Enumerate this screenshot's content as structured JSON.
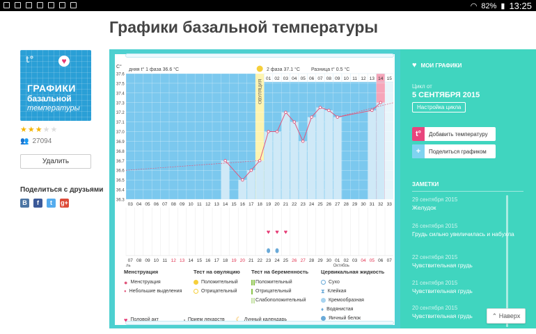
{
  "status_bar": {
    "battery": "82%",
    "time": "13:25"
  },
  "page": {
    "title": "Графики базальной температуры"
  },
  "app": {
    "icon": {
      "t0": "t°",
      "line1": "ГРАФИКИ",
      "line2": "базальной",
      "line3": "температуры"
    },
    "rating_stars": 3,
    "rating_max": 5,
    "downloads": "27094",
    "delete_label": "Удалить"
  },
  "share": {
    "title": "Поделиться с друзьями",
    "networks": [
      {
        "icon": "vk-icon",
        "glyph": "В",
        "color": "#4c75a3"
      },
      {
        "icon": "facebook-icon",
        "glyph": "f",
        "color": "#3b5998"
      },
      {
        "icon": "twitter-icon",
        "glyph": "t",
        "color": "#55acee"
      },
      {
        "icon": "google-plus-icon",
        "glyph": "g+",
        "color": "#dd4b39"
      }
    ]
  },
  "chart_data": {
    "type": "line",
    "header": {
      "phase1": "дняя t° 1 фаза",
      "phase1_value": "36.6 °C",
      "phase2": "2 фаза",
      "phase2_value": "37.1 °C",
      "diff": "Разница t°",
      "diff_value": "0.5 °C"
    },
    "ylabel": "C°",
    "ylim": [
      36.3,
      37.6
    ],
    "yticks": [
      "37.6",
      "37.5",
      "37.4",
      "37.3",
      "37.2",
      "37.1",
      "37.0",
      "36.9",
      "36.8",
      "36.7",
      "36.6",
      "36.5",
      "36.4",
      "36.3"
    ],
    "cycle_days": [
      "03",
      "04",
      "05",
      "06",
      "07",
      "08",
      "09",
      "10",
      "11",
      "12",
      "13",
      "14",
      "15",
      "16",
      "17",
      "18",
      "19",
      "20",
      "21",
      "22",
      "23",
      "24",
      "25",
      "26",
      "27",
      "28",
      "29",
      "30",
      "31",
      "32",
      "33"
    ],
    "visible_top_days": [
      "01",
      "02",
      "03",
      "04",
      "05",
      "06",
      "07",
      "08",
      "09",
      "10",
      "11",
      "12",
      "13",
      "14",
      "15"
    ],
    "calendar_dates": [
      "07",
      "08",
      "09",
      "10",
      "11",
      "12",
      "13",
      "14",
      "15",
      "16",
      "17",
      "18",
      "19",
      "20",
      "21",
      "22",
      "23",
      "24",
      "25",
      "26",
      "27",
      "28",
      "29",
      "30",
      "01",
      "02",
      "03",
      "04",
      "05",
      "06",
      "07"
    ],
    "red_dates": [
      "12",
      "13",
      "19",
      "20",
      "26",
      "27",
      "03",
      "04"
    ],
    "month_labels": {
      "start": "ль",
      "mid": "Октябрь"
    },
    "ovulation_label": "ОВУЛЯЦИЯ",
    "ovulation_day": "18",
    "temperature_points": [
      {
        "day": "14",
        "temp": 36.7
      },
      {
        "day": "16",
        "temp": 36.5
      },
      {
        "day": "17",
        "temp": 36.6
      },
      {
        "day": "18",
        "temp": 36.7
      },
      {
        "day": "19",
        "temp": 37.0
      },
      {
        "day": "20",
        "temp": 37.0
      },
      {
        "day": "21",
        "temp": 37.2
      },
      {
        "day": "22",
        "temp": 37.1
      },
      {
        "day": "23",
        "temp": 36.9
      },
      {
        "day": "24",
        "temp": 37.15
      },
      {
        "day": "25",
        "temp": 37.25
      },
      {
        "day": "26",
        "temp": 37.22
      },
      {
        "day": "27",
        "temp": 37.15
      },
      {
        "day": "31",
        "temp": 37.22
      },
      {
        "day": "32",
        "temp": 37.3
      }
    ],
    "cover_line_start": 36.6,
    "cover_line_end": 36.7,
    "heart_days": [
      "19",
      "20",
      "21"
    ],
    "drop_days": [
      "19",
      "20"
    ],
    "colors": {
      "phase1": "#7bc8ee",
      "phase2": "#cfe9f7",
      "ovulation": "#fdf4b0",
      "pink": "#f6a5b9",
      "line": "#e0577c"
    }
  },
  "legend": {
    "menstruation": {
      "title": "Менструация",
      "items": [
        "Менструация",
        "Небольшие выделения"
      ]
    },
    "ovulation_test": {
      "title": "Тест на овуляцию",
      "items": [
        "Положительный",
        "Отрицательный"
      ]
    },
    "pregnancy_test": {
      "title": "Тест на беременность",
      "items": [
        "Положительный",
        "Отрицательный",
        "Слабоположительный"
      ]
    },
    "cervical": {
      "title": "Цервикальная жидкость",
      "items": [
        "Сухо",
        "Клейкая",
        "Кремообразная",
        "Водянистая",
        "Яичный белок"
      ]
    },
    "bottom": [
      "Половой акт",
      "Прием лекарств",
      "Лунный календарь"
    ]
  },
  "sidebar": {
    "my_charts": "МОИ ГРАФИКИ",
    "cycle_from": "Цикл от",
    "cycle_date": "5 СЕНТЯБРЯ 2015",
    "cycle_settings": "Настройка цикла",
    "add_temp": "Добавить температуру",
    "share_chart": "Поделиться графиком",
    "notes_title": "ЗАМЕТКИ",
    "notes": [
      {
        "date": "29 сентября 2015",
        "text": "Желудок"
      },
      {
        "date": "26 сентября 2015",
        "text": "Грудь сильно увеличилась и набухла"
      },
      {
        "date": "22 сентября 2015",
        "text": "Чувствительная грудь"
      },
      {
        "date": "21 сентября 2015",
        "text": "Чувствительная грудь"
      },
      {
        "date": "20 сентября 2015",
        "text": "Чувствительная грудь"
      }
    ]
  },
  "back_label": "Наверх"
}
